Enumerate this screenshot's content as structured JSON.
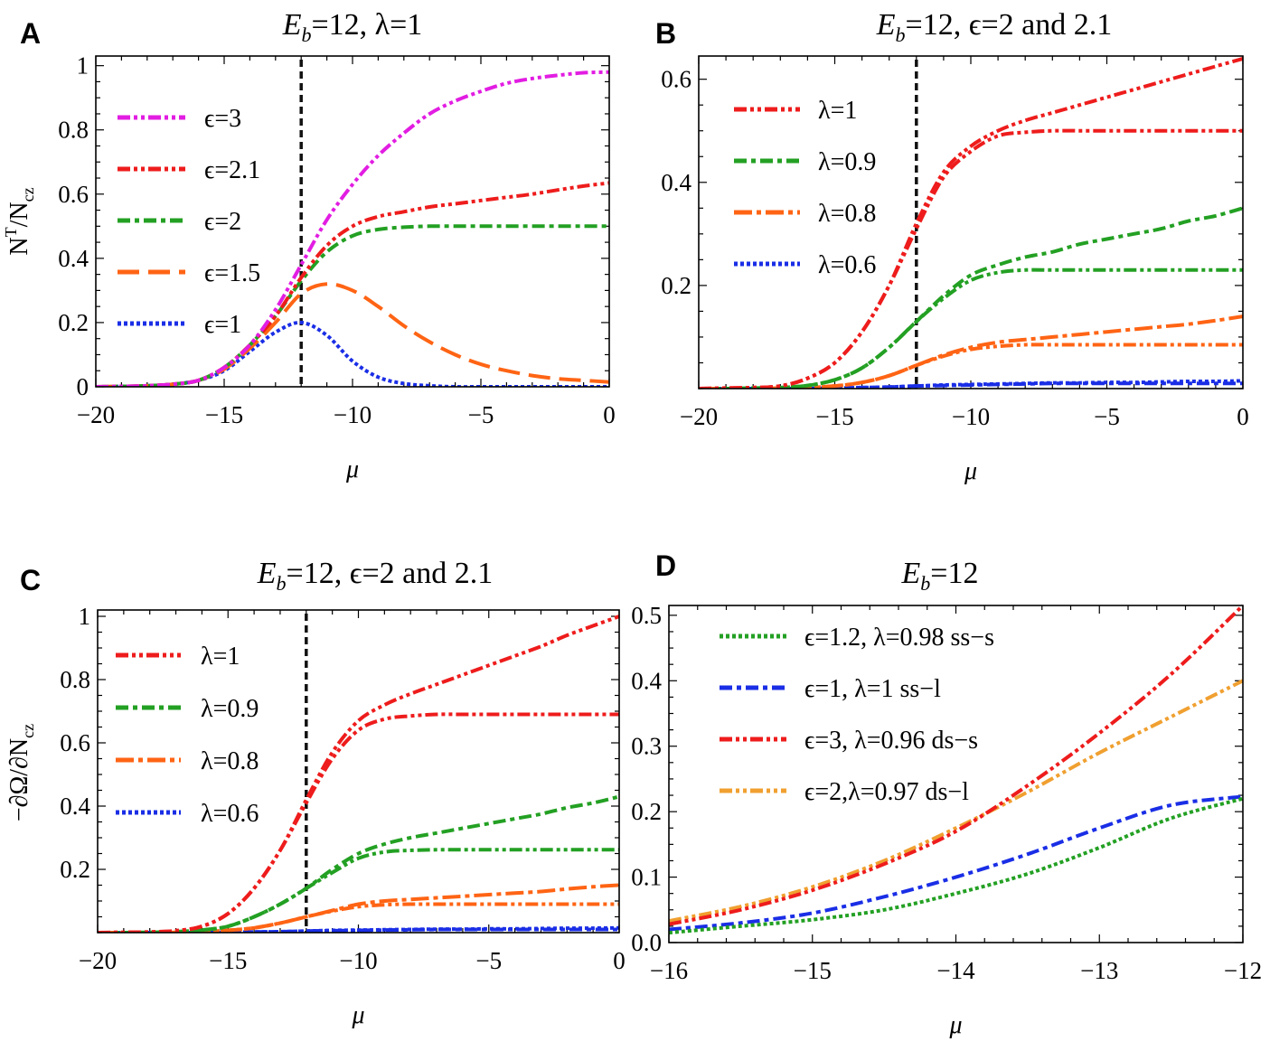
{
  "chart_data": [
    {
      "panel": "A",
      "type": "line",
      "title": {
        "main": "E",
        "sub": "b",
        "rest": "=12, λ=1"
      },
      "xlabel": "μ",
      "ylabel": {
        "main": "N",
        "sup": "T",
        "mid": "/N",
        "sub": "cz"
      },
      "xlim": [
        -20,
        0
      ],
      "ylim": [
        0,
        1.03
      ],
      "xticks": [
        -20,
        -15,
        -10,
        -5,
        0
      ],
      "xtick_labels": [
        "−20",
        "−15",
        "−10",
        "−5",
        "0"
      ],
      "yticks": [
        0,
        0.2,
        0.4,
        0.6,
        0.8,
        1
      ],
      "ytick_labels": [
        "0",
        "0.2",
        "0.4",
        "0.6",
        "0.8",
        "1"
      ],
      "vline": -12,
      "x": [
        -20,
        -19,
        -18,
        -17,
        -16,
        -15,
        -14,
        -13,
        -12,
        -11,
        -10,
        -9,
        -8,
        -7,
        -6,
        -5,
        -4,
        -3,
        -2,
        -1,
        0
      ],
      "series": [
        {
          "name": "ϵ=3",
          "legend": true,
          "color": "#e21de2",
          "style": "dash-dot-dot",
          "values": [
            0,
            0.001,
            0.003,
            0.008,
            0.02,
            0.06,
            0.13,
            0.24,
            0.38,
            0.52,
            0.63,
            0.72,
            0.79,
            0.85,
            0.89,
            0.92,
            0.945,
            0.96,
            0.97,
            0.978,
            0.98
          ]
        },
        {
          "name": "ϵ=2.1",
          "legend": true,
          "color": "#ee1c1c",
          "style": "dash-dot-dot",
          "values": [
            0,
            0.001,
            0.003,
            0.008,
            0.02,
            0.06,
            0.13,
            0.22,
            0.34,
            0.44,
            0.5,
            0.53,
            0.545,
            0.56,
            0.57,
            0.58,
            0.59,
            0.6,
            0.613,
            0.625,
            0.635
          ]
        },
        {
          "name": "ϵ=2",
          "legend": true,
          "color": "#23a023",
          "style": "dash-dot",
          "values": [
            0,
            0.001,
            0.003,
            0.008,
            0.02,
            0.06,
            0.13,
            0.22,
            0.33,
            0.42,
            0.47,
            0.49,
            0.497,
            0.5,
            0.5,
            0.5,
            0.5,
            0.5,
            0.5,
            0.5,
            0.5
          ]
        },
        {
          "name": "ϵ=1.5",
          "legend": true,
          "color": "#ff6414",
          "style": "long-dash",
          "values": [
            0,
            0.001,
            0.003,
            0.008,
            0.02,
            0.055,
            0.12,
            0.2,
            0.29,
            0.32,
            0.3,
            0.25,
            0.19,
            0.14,
            0.1,
            0.07,
            0.05,
            0.035,
            0.025,
            0.02,
            0.015
          ]
        },
        {
          "name": "ϵ=1",
          "legend": true,
          "color": "#1a2ee6",
          "style": "dotted",
          "values": [
            0,
            0.001,
            0.003,
            0.008,
            0.02,
            0.05,
            0.11,
            0.17,
            0.2,
            0.16,
            0.08,
            0.03,
            0.01,
            0.003,
            0,
            0,
            0,
            0,
            0,
            0,
            0
          ]
        }
      ]
    },
    {
      "panel": "B",
      "type": "line",
      "title": {
        "main": "E",
        "sub": "b",
        "rest": "=12, ϵ=2 and 2.1"
      },
      "xlabel": "μ",
      "xlim": [
        -20,
        0
      ],
      "ylim": [
        0,
        0.645
      ],
      "xticks": [
        -20,
        -15,
        -10,
        -5,
        0
      ],
      "xtick_labels": [
        "−20",
        "−15",
        "−10",
        "−5",
        "0"
      ],
      "yticks": [
        0.2,
        0.4,
        0.6
      ],
      "ytick_labels": [
        "0.2",
        "0.4",
        "0.6"
      ],
      "vline": -12,
      "x": [
        -20,
        -19,
        -18,
        -17,
        -16,
        -15,
        -14,
        -13,
        -12,
        -11,
        -10,
        -9,
        -8,
        -7,
        -6,
        -5,
        -4,
        -3,
        -2,
        -1,
        0
      ],
      "series": [
        {
          "name": "λ=1",
          "legend": true,
          "color": "#ee1c1c",
          "style": "dash-dot-dot",
          "values": [
            0,
            0.001,
            0.002,
            0.005,
            0.02,
            0.05,
            0.11,
            0.2,
            0.32,
            0.42,
            0.47,
            0.5,
            0.52,
            0.535,
            0.55,
            0.565,
            0.58,
            0.595,
            0.61,
            0.625,
            0.64
          ]
        },
        {
          "name": "λ=1 (ϵ=2)",
          "legend": false,
          "color": "#ee1c1c",
          "style": "dash-dot-dot",
          "values": [
            0,
            0.001,
            0.002,
            0.005,
            0.02,
            0.05,
            0.11,
            0.2,
            0.31,
            0.41,
            0.46,
            0.49,
            0.497,
            0.5,
            0.5,
            0.5,
            0.5,
            0.5,
            0.5,
            0.5,
            0.5
          ]
        },
        {
          "name": "λ=0.9",
          "legend": true,
          "color": "#23a023",
          "style": "dash-dot",
          "values": [
            0,
            0,
            0.001,
            0.002,
            0.006,
            0.017,
            0.04,
            0.08,
            0.13,
            0.18,
            0.22,
            0.24,
            0.255,
            0.265,
            0.28,
            0.29,
            0.3,
            0.31,
            0.325,
            0.335,
            0.35
          ]
        },
        {
          "name": "λ=0.9 (ϵ=2)",
          "legend": false,
          "color": "#23a023",
          "style": "dash-dot-dot",
          "values": [
            0,
            0,
            0.001,
            0.002,
            0.006,
            0.017,
            0.04,
            0.08,
            0.13,
            0.175,
            0.21,
            0.225,
            0.23,
            0.23,
            0.23,
            0.23,
            0.23,
            0.23,
            0.23,
            0.23,
            0.23
          ]
        },
        {
          "name": "λ=0.8",
          "legend": true,
          "color": "#ff6414",
          "style": "long-dash-dot",
          "values": [
            0,
            0,
            0,
            0.001,
            0.002,
            0.005,
            0.012,
            0.025,
            0.045,
            0.065,
            0.08,
            0.09,
            0.095,
            0.1,
            0.105,
            0.11,
            0.115,
            0.12,
            0.125,
            0.132,
            0.14
          ]
        },
        {
          "name": "λ=0.8 (ϵ=2)",
          "legend": false,
          "color": "#ff6414",
          "style": "dash-dot-dot",
          "values": [
            0,
            0,
            0,
            0.001,
            0.002,
            0.005,
            0.012,
            0.025,
            0.045,
            0.063,
            0.076,
            0.082,
            0.085,
            0.085,
            0.085,
            0.085,
            0.085,
            0.085,
            0.085,
            0.085,
            0.085
          ]
        },
        {
          "name": "λ=0.6",
          "legend": true,
          "color": "#1a2ee6",
          "style": "dotted",
          "values": [
            0,
            0,
            0,
            0,
            0,
            0.001,
            0.002,
            0.003,
            0.005,
            0.007,
            0.008,
            0.009,
            0.01,
            0.011,
            0.011,
            0.012,
            0.012,
            0.013,
            0.014,
            0.014,
            0.015
          ]
        },
        {
          "name": "λ=0.6 (ϵ=2)",
          "legend": false,
          "color": "#1a2ee6",
          "style": "dash-dot",
          "values": [
            0,
            0,
            0,
            0,
            0,
            0.001,
            0.002,
            0.003,
            0.005,
            0.006,
            0.007,
            0.008,
            0.009,
            0.01,
            0.01,
            0.01,
            0.01,
            0.01,
            0.01,
            0.01,
            0.01
          ]
        }
      ]
    },
    {
      "panel": "C",
      "type": "line",
      "title": {
        "main": "E",
        "sub": "b",
        "rest": "=12, ϵ=2 and 2.1"
      },
      "xlabel": "μ",
      "ylabel": {
        "main": "−∂Ω/∂N",
        "sup": "",
        "mid": "",
        "sub": "cz"
      },
      "xlim": [
        -20,
        0
      ],
      "ylim": [
        0,
        1.02
      ],
      "xticks": [
        -20,
        -15,
        -10,
        -5,
        0
      ],
      "xtick_labels": [
        "−20",
        "−15",
        "−10",
        "−5",
        "0"
      ],
      "yticks": [
        0.2,
        0.4,
        0.6,
        0.8,
        1
      ],
      "ytick_labels": [
        "0.2",
        "0.4",
        "0.6",
        "0.8",
        "1"
      ],
      "vline": -12,
      "x": [
        -20,
        -19,
        -18,
        -17,
        -16,
        -15,
        -14,
        -13,
        -12,
        -11,
        -10,
        -9,
        -8,
        -7,
        -6,
        -5,
        -4,
        -3,
        -2,
        -1,
        0
      ],
      "series": [
        {
          "name": "λ=1",
          "legend": true,
          "color": "#ee1c1c",
          "style": "dash-dot-dot",
          "values": [
            0,
            0.001,
            0.002,
            0.006,
            0.02,
            0.06,
            0.14,
            0.26,
            0.42,
            0.57,
            0.67,
            0.72,
            0.755,
            0.785,
            0.815,
            0.845,
            0.875,
            0.905,
            0.94,
            0.97,
            1.0
          ]
        },
        {
          "name": "λ=1 (ϵ=2)",
          "legend": false,
          "color": "#ee1c1c",
          "style": "dash-dot-dot",
          "values": [
            0,
            0.001,
            0.002,
            0.006,
            0.02,
            0.06,
            0.14,
            0.26,
            0.41,
            0.55,
            0.64,
            0.675,
            0.685,
            0.69,
            0.69,
            0.69,
            0.69,
            0.69,
            0.69,
            0.69,
            0.69
          ]
        },
        {
          "name": "λ=0.9",
          "legend": true,
          "color": "#23a023",
          "style": "dash-dot",
          "values": [
            0,
            0,
            0.001,
            0.003,
            0.008,
            0.02,
            0.05,
            0.09,
            0.14,
            0.2,
            0.25,
            0.28,
            0.3,
            0.315,
            0.33,
            0.345,
            0.36,
            0.375,
            0.395,
            0.41,
            0.43
          ]
        },
        {
          "name": "λ=0.9 (ϵ=2)",
          "legend": false,
          "color": "#23a023",
          "style": "dash-dot-dot",
          "values": [
            0,
            0,
            0.001,
            0.003,
            0.008,
            0.02,
            0.05,
            0.09,
            0.14,
            0.19,
            0.235,
            0.255,
            0.26,
            0.262,
            0.262,
            0.262,
            0.262,
            0.262,
            0.262,
            0.262,
            0.262
          ]
        },
        {
          "name": "λ=0.8",
          "legend": true,
          "color": "#ff6414",
          "style": "long-dash-dot",
          "values": [
            0,
            0,
            0,
            0.001,
            0.003,
            0.007,
            0.015,
            0.03,
            0.05,
            0.07,
            0.09,
            0.1,
            0.105,
            0.11,
            0.115,
            0.12,
            0.125,
            0.13,
            0.138,
            0.145,
            0.15
          ]
        },
        {
          "name": "λ=0.8 (ϵ=2)",
          "legend": false,
          "color": "#ff6414",
          "style": "dash-dot-dot",
          "values": [
            0,
            0,
            0,
            0.001,
            0.003,
            0.007,
            0.015,
            0.03,
            0.05,
            0.068,
            0.082,
            0.088,
            0.09,
            0.09,
            0.09,
            0.09,
            0.09,
            0.09,
            0.09,
            0.09,
            0.09
          ]
        },
        {
          "name": "λ=0.6",
          "legend": true,
          "color": "#1a2ee6",
          "style": "dotted",
          "values": [
            0,
            0,
            0,
            0,
            0,
            0.001,
            0.002,
            0.003,
            0.005,
            0.007,
            0.008,
            0.009,
            0.01,
            0.011,
            0.011,
            0.012,
            0.012,
            0.013,
            0.014,
            0.014,
            0.015
          ]
        },
        {
          "name": "λ=0.6 (ϵ=2)",
          "legend": false,
          "color": "#1a2ee6",
          "style": "dash-dot",
          "values": [
            0,
            0,
            0,
            0,
            0,
            0.001,
            0.002,
            0.003,
            0.005,
            0.006,
            0.007,
            0.008,
            0.009,
            0.01,
            0.01,
            0.01,
            0.01,
            0.01,
            0.01,
            0.01,
            0.01
          ]
        }
      ]
    },
    {
      "panel": "D",
      "type": "line",
      "title": {
        "main": "E",
        "sub": "b",
        "rest": "=12"
      },
      "xlabel": "μ",
      "xlim": [
        -16,
        -12
      ],
      "ylim": [
        0,
        0.515
      ],
      "xticks": [
        -16,
        -15,
        -14,
        -13,
        -12
      ],
      "xtick_labels": [
        "−16",
        "−15",
        "−14",
        "−13",
        "−12"
      ],
      "yticks": [
        0,
        0.1,
        0.2,
        0.3,
        0.4,
        0.5
      ],
      "ytick_labels": [
        "0.0",
        "0.1",
        "0.2",
        "0.3",
        "0.4",
        "0.5"
      ],
      "vline": null,
      "x": [
        -16,
        -15.5,
        -15,
        -14.5,
        -14,
        -13.5,
        -13,
        -12.5,
        -12
      ],
      "series": [
        {
          "name": "ϵ=1.2, λ=0.98 ss−s",
          "legend": true,
          "color": "#23a023",
          "style": "dotted",
          "values": [
            0.015,
            0.025,
            0.035,
            0.05,
            0.075,
            0.105,
            0.145,
            0.19,
            0.22
          ]
        },
        {
          "name": "ϵ=1, λ=1 ss−l",
          "legend": true,
          "color": "#1a2ee6",
          "style": "dash-dot",
          "values": [
            0.02,
            0.03,
            0.045,
            0.07,
            0.1,
            0.135,
            0.175,
            0.21,
            0.223
          ]
        },
        {
          "name": "ϵ=3, λ=0.96 ds−s",
          "legend": true,
          "color": "#ee1c1c",
          "style": "dash-dot-dot",
          "values": [
            0.028,
            0.05,
            0.08,
            0.12,
            0.17,
            0.24,
            0.32,
            0.41,
            0.515
          ]
        },
        {
          "name": "ϵ=2,λ=0.97 ds−l",
          "legend": true,
          "color": "#f0a030",
          "style": "dash-dot-dot",
          "values": [
            0.033,
            0.055,
            0.085,
            0.125,
            0.175,
            0.23,
            0.29,
            0.345,
            0.4
          ]
        }
      ]
    }
  ]
}
